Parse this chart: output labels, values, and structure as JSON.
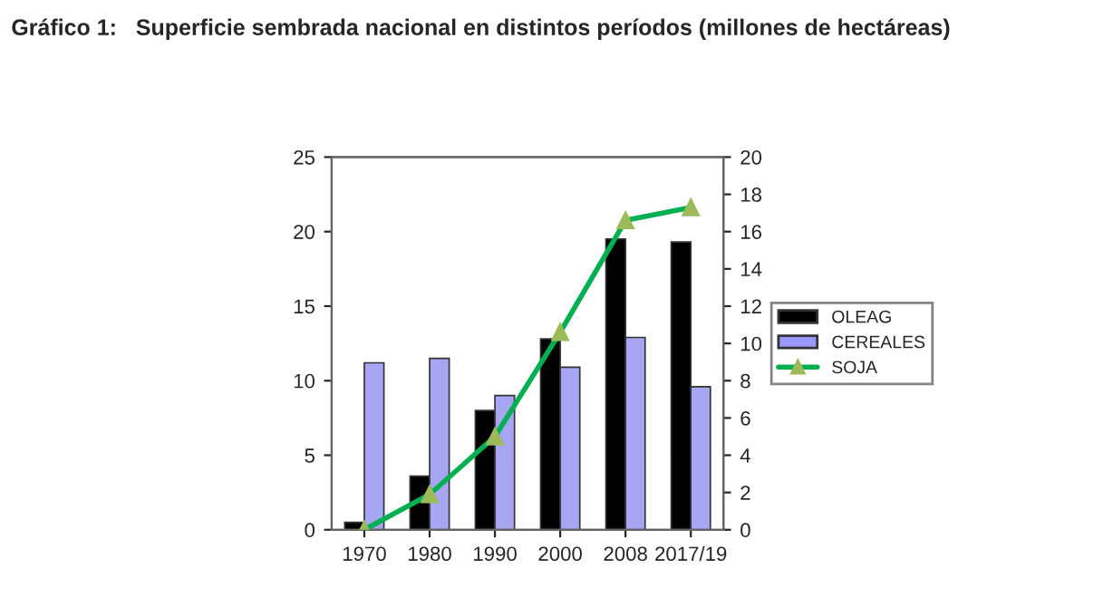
{
  "chart_data": {
    "type": "bar",
    "title": "Gráfico 1:   Superficie sembrada nacional en distintos períodos (millones de hectáreas)",
    "categories": [
      "1970",
      "1980",
      "1990",
      "2000",
      "2008",
      "2017/19"
    ],
    "series": [
      {
        "name": "OLEAG",
        "color": "#000000",
        "values": [
          0.5,
          3.6,
          8.0,
          12.8,
          19.5,
          19.3
        ]
      },
      {
        "name": "CEREALES",
        "color": "#9999ff",
        "values": [
          11.2,
          11.5,
          9.0,
          10.9,
          12.9,
          9.6
        ]
      },
      {
        "name": "SOJA",
        "type": "line",
        "axis": "y2",
        "color": "#00b050",
        "marker": "triangle",
        "values": [
          0.0,
          1.9,
          5.0,
          10.6,
          16.6,
          17.3
        ]
      }
    ],
    "ylim": [
      0,
      25
    ],
    "yticks": [
      0,
      5,
      10,
      15,
      20,
      25
    ],
    "y2lim": [
      0,
      20
    ],
    "y2ticks": [
      0,
      2,
      4,
      6,
      8,
      10,
      12,
      14,
      16,
      18,
      20
    ],
    "grid": false,
    "legend": "right"
  }
}
